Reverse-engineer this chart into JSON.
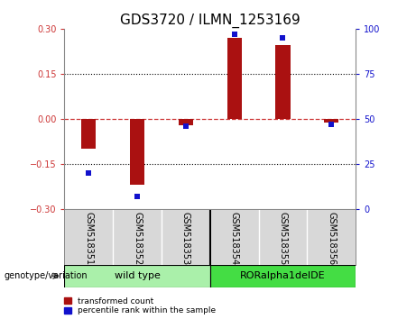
{
  "title": "GDS3720 / ILMN_1253169",
  "samples": [
    "GSM518351",
    "GSM518352",
    "GSM518353",
    "GSM518354",
    "GSM518355",
    "GSM518356"
  ],
  "transformed_counts": [
    -0.1,
    -0.22,
    -0.02,
    0.27,
    0.245,
    -0.012
  ],
  "percentile_ranks": [
    20,
    7,
    46,
    97,
    95,
    47
  ],
  "bar_color": "#aa1111",
  "dot_color": "#1111cc",
  "ylim_left": [
    -0.3,
    0.3
  ],
  "ylim_right": [
    0,
    100
  ],
  "yticks_left": [
    -0.3,
    -0.15,
    0,
    0.15,
    0.3
  ],
  "yticks_right": [
    0,
    25,
    50,
    75,
    100
  ],
  "groups": [
    {
      "label": "wild type",
      "start": 0,
      "end": 2,
      "color": "#aaf0aa"
    },
    {
      "label": "RORalpha1delDE",
      "start": 3,
      "end": 5,
      "color": "#44dd44"
    }
  ],
  "genotype_label": "genotype/variation",
  "legend_red": "transformed count",
  "legend_blue": "percentile rank within the sample",
  "cell_bg": "#d8d8d8",
  "plot_bg": "#ffffff",
  "title_fontsize": 11,
  "tick_fontsize": 7,
  "label_fontsize": 7,
  "group_fontsize": 8
}
